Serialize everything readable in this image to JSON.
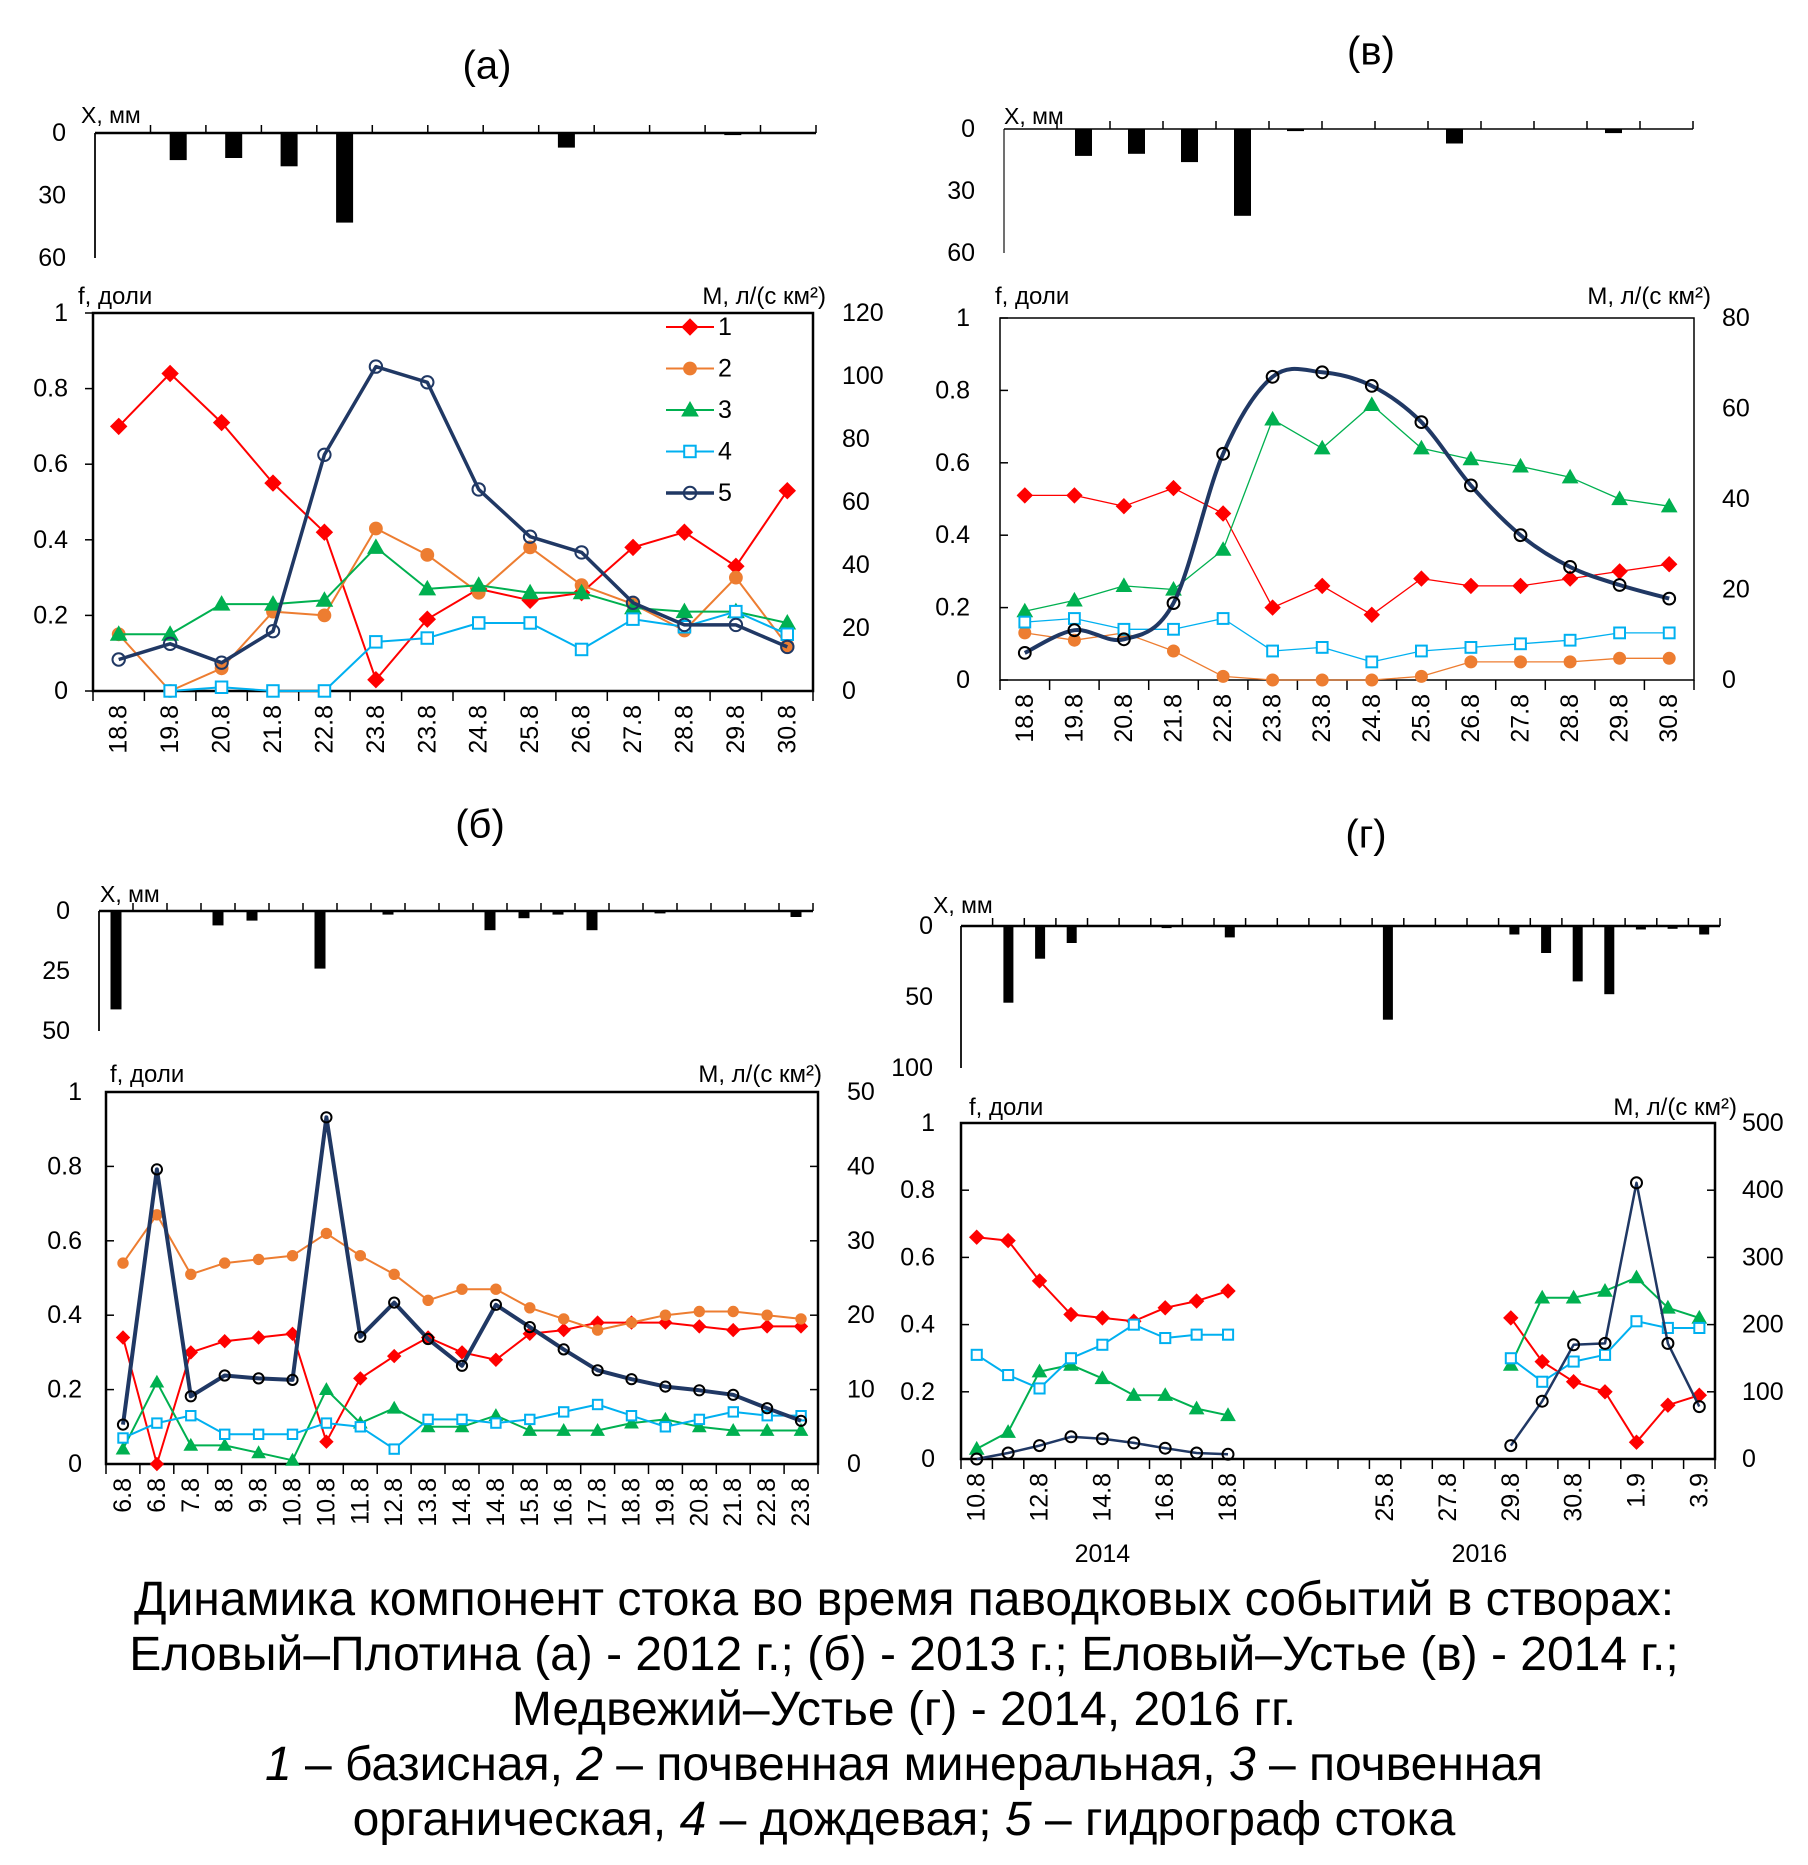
{
  "figure": {
    "panels": [
      {
        "key": "а",
        "title": "(а)"
      },
      {
        "key": "в",
        "title": "(в)"
      },
      {
        "key": "б",
        "title": "(б)"
      },
      {
        "key": "г",
        "title": "(г)"
      }
    ],
    "caption": {
      "lines": [
        "Динамика компонент стока во время паводковых событий в створах:",
        "Еловый–Плотина (а) - 2012 г.; (б) - 2013 г.; Еловый–Устье (в) - 2014 г.;",
        "Медвежий–Устье (г) - 2014, 2016 гг."
      ],
      "legend_lines": [
        [
          {
            "num": "1",
            "text": " – базисная, "
          },
          {
            "num": "2",
            "text": " – почвенная минеральная, "
          },
          {
            "num": "3",
            "text": " – почвенная"
          }
        ],
        [
          {
            "num": "",
            "text": "органическая, "
          },
          {
            "num": "4",
            "text": " – дождевая; "
          },
          {
            "num": "5",
            "text": " – гидрограф стока"
          }
        ]
      ]
    }
  },
  "series_styles": [
    {
      "name": "1",
      "label": "базисная",
      "color": "#FF0000",
      "marker": "diamond",
      "marker_fill": "#FF0000"
    },
    {
      "name": "2",
      "label": "почвенная минеральная",
      "color": "#ED7D31",
      "marker": "circle",
      "marker_fill": "#ED7D31"
    },
    {
      "name": "3",
      "label": "почвенная органическая",
      "color": "#00B050",
      "marker": "triangle",
      "marker_fill": "#00B050"
    },
    {
      "name": "4",
      "label": "дождевая",
      "color": "#00B0F0",
      "marker": "square",
      "marker_fill": "#FFFFFF"
    },
    {
      "name": "5",
      "label": "гидрограф стока",
      "color": "#203864",
      "marker": "circle-open",
      "marker_fill": "none"
    }
  ],
  "chart_data": [
    {
      "panel": "а",
      "role": "precipitation",
      "type": "bar",
      "ylabel": "X, мм",
      "yticks": [
        0,
        30,
        60
      ],
      "ylim": [
        0,
        60
      ],
      "y_direction": "down",
      "values": [
        null,
        13,
        12,
        16,
        43,
        null,
        null,
        null,
        7,
        null,
        null,
        1,
        null
      ]
    },
    {
      "panel": "а",
      "role": "runoff-components",
      "type": "line",
      "grid": false,
      "ylabel_left": "f, доли",
      "ylabel_right": "M, л/(с км²)",
      "yticks_left": [
        0,
        0.2,
        0.4,
        0.6,
        0.8,
        1
      ],
      "ylim_left": [
        0,
        1
      ],
      "yticks_right": [
        0,
        20,
        40,
        60,
        80,
        100,
        120
      ],
      "ylim_right": [
        0,
        120
      ],
      "categories": [
        "18.8",
        "19.8",
        "20.8",
        "21.8",
        "22.8",
        "23.8",
        "23.8",
        "24.8",
        "25.8",
        "26.8",
        "27.8",
        "28.8",
        "29.8",
        "30.8"
      ],
      "series": [
        {
          "name": "1",
          "axis": "left",
          "values": [
            0.7,
            0.84,
            0.71,
            0.55,
            0.42,
            0.03,
            0.19,
            0.27,
            0.24,
            0.26,
            0.38,
            0.42,
            0.33,
            0.53
          ]
        },
        {
          "name": "2",
          "axis": "left",
          "values": [
            0.15,
            0.0,
            0.06,
            0.21,
            0.2,
            0.43,
            0.36,
            0.26,
            0.38,
            0.28,
            0.23,
            0.16,
            0.3,
            0.12
          ]
        },
        {
          "name": "3",
          "axis": "left",
          "values": [
            0.15,
            0.15,
            0.23,
            0.23,
            0.24,
            0.38,
            0.27,
            0.28,
            0.26,
            0.26,
            0.22,
            0.21,
            0.21,
            0.18
          ]
        },
        {
          "name": "4",
          "axis": "left",
          "values": [
            null,
            0.0,
            0.01,
            0.0,
            0.0,
            0.13,
            0.14,
            0.18,
            0.18,
            0.11,
            0.19,
            0.17,
            0.21,
            0.15
          ]
        },
        {
          "name": "5",
          "axis": "right",
          "values": [
            10,
            15,
            9,
            19,
            75,
            103,
            98,
            64,
            49,
            44,
            28,
            21,
            21,
            14
          ]
        }
      ],
      "legend": {
        "entries": [
          "1",
          "2",
          "3",
          "4",
          "5"
        ],
        "placement": "top-right"
      }
    },
    {
      "panel": "в",
      "role": "precipitation",
      "type": "bar",
      "ylabel": "X, мм",
      "yticks": [
        0,
        30,
        60
      ],
      "ylim": [
        0,
        60
      ],
      "y_direction": "down",
      "values": [
        null,
        13,
        12,
        16,
        42,
        1,
        null,
        null,
        7,
        null,
        null,
        2,
        null
      ]
    },
    {
      "panel": "в",
      "role": "runoff-components",
      "type": "line",
      "grid": false,
      "ylabel_left": "f, доли",
      "ylabel_right": "M, л/(с км²)",
      "yticks_left": [
        0,
        0.2,
        0.4,
        0.6,
        0.8,
        1
      ],
      "ylim_left": [
        0,
        1
      ],
      "yticks_right": [
        0,
        20,
        40,
        60,
        80
      ],
      "ylim_right": [
        0,
        80
      ],
      "categories": [
        "18.8",
        "19.8",
        "20.8",
        "21.8",
        "22.8",
        "23.8",
        "23.8",
        "24.8",
        "25.8",
        "26.8",
        "27.8",
        "28.8",
        "29.8",
        "30.8"
      ],
      "series": [
        {
          "name": "1",
          "axis": "left",
          "values": [
            0.51,
            0.51,
            0.48,
            0.53,
            0.46,
            0.2,
            0.26,
            0.18,
            0.28,
            0.26,
            0.26,
            0.28,
            0.3,
            0.32
          ]
        },
        {
          "name": "2",
          "axis": "left",
          "values": [
            0.13,
            0.11,
            0.13,
            0.08,
            0.01,
            0.0,
            0.0,
            0.0,
            0.01,
            0.05,
            0.05,
            0.05,
            0.06,
            0.06
          ]
        },
        {
          "name": "3",
          "axis": "left",
          "values": [
            0.19,
            0.22,
            0.26,
            0.25,
            0.36,
            0.72,
            0.64,
            0.76,
            0.64,
            0.61,
            0.59,
            0.56,
            0.5,
            0.48
          ]
        },
        {
          "name": "4",
          "axis": "left",
          "values": [
            0.16,
            0.17,
            0.14,
            0.14,
            0.17,
            0.08,
            0.09,
            0.05,
            0.08,
            0.09,
            0.1,
            0.11,
            0.13,
            0.13
          ]
        },
        {
          "name": "5",
          "axis": "right",
          "values": [
            6,
            11,
            9,
            17,
            50,
            67,
            68,
            65,
            57,
            43,
            32,
            25,
            21,
            18
          ]
        }
      ]
    },
    {
      "panel": "б",
      "role": "precipitation",
      "type": "bar",
      "ylabel": "X, мм",
      "yticks": [
        0,
        25,
        50
      ],
      "ylim": [
        0,
        50
      ],
      "y_direction": "down",
      "values": [
        41,
        null,
        null,
        6,
        4,
        null,
        24,
        null,
        1.5,
        null,
        null,
        8,
        3,
        1.5,
        8,
        null,
        1,
        null,
        null,
        null,
        2.5
      ]
    },
    {
      "panel": "б",
      "role": "runoff-components",
      "type": "line",
      "grid": false,
      "ylabel_left": "f, доли",
      "ylabel_right": "M, л/(с км²)",
      "yticks_left": [
        0,
        0.2,
        0.4,
        0.6,
        0.8,
        1
      ],
      "ylim_left": [
        0,
        1
      ],
      "yticks_right": [
        0,
        10,
        20,
        30,
        40,
        50
      ],
      "ylim_right": [
        0,
        50
      ],
      "categories": [
        "6.8",
        "6.8",
        "7.8",
        "8.8",
        "9.8",
        "10.8",
        "10.8",
        "11.8",
        "12.8",
        "13.8",
        "14.8",
        "14.8",
        "15.8",
        "16.8",
        "17.8",
        "18.8",
        "19.8",
        "20.8",
        "21.8",
        "22.8",
        "23.8"
      ],
      "series": [
        {
          "name": "1",
          "axis": "left",
          "values": [
            0.34,
            0.0,
            0.3,
            0.33,
            0.34,
            0.35,
            0.06,
            0.23,
            0.29,
            0.34,
            0.3,
            0.28,
            0.35,
            0.36,
            0.38,
            0.38,
            0.38,
            0.37,
            0.36,
            0.37,
            0.37
          ]
        },
        {
          "name": "2",
          "axis": "left",
          "values": [
            0.54,
            0.67,
            0.51,
            0.54,
            0.55,
            0.56,
            0.62,
            0.56,
            0.51,
            0.44,
            0.47,
            0.47,
            0.42,
            0.39,
            0.36,
            0.38,
            0.4,
            0.41,
            0.41,
            0.4,
            0.39
          ]
        },
        {
          "name": "3",
          "axis": "left",
          "values": [
            0.04,
            0.22,
            0.05,
            0.05,
            0.03,
            0.01,
            0.2,
            0.11,
            0.15,
            0.1,
            0.1,
            0.13,
            0.09,
            0.09,
            0.09,
            0.11,
            0.12,
            0.1,
            0.09,
            0.09,
            0.09
          ]
        },
        {
          "name": "4",
          "axis": "left",
          "values": [
            0.07,
            0.11,
            0.13,
            0.08,
            0.08,
            0.08,
            0.11,
            0.1,
            0.04,
            0.12,
            0.12,
            0.11,
            0.12,
            0.14,
            0.16,
            0.13,
            0.1,
            0.12,
            0.14,
            0.13,
            0.13
          ]
        },
        {
          "name": "5",
          "axis": "right",
          "values": [
            5.3,
            39.6,
            9.1,
            11.9,
            11.5,
            11.3,
            46.6,
            17.1,
            21.7,
            16.8,
            13.2,
            21.4,
            18.4,
            15.4,
            12.6,
            11.4,
            10.4,
            9.9,
            9.3,
            7.5,
            5.8
          ]
        }
      ]
    },
    {
      "panel": "г",
      "role": "precipitation",
      "type": "bar",
      "ylabel": "X, мм",
      "yticks": [
        0,
        50,
        100
      ],
      "ylim": [
        0,
        100
      ],
      "y_direction": "down",
      "values": [
        null,
        54,
        23,
        12,
        null,
        null,
        1.5,
        null,
        8,
        null,
        null,
        null,
        null,
        66,
        null,
        null,
        null,
        6,
        19,
        39,
        48,
        2.5,
        2,
        6
      ]
    },
    {
      "panel": "г",
      "role": "runoff-components",
      "type": "line",
      "grid": false,
      "ylabel_left": "f, доли",
      "ylabel_right": "M, л/(с км²)",
      "yticks_left": [
        0,
        0.2,
        0.4,
        0.6,
        0.8,
        1
      ],
      "ylim_left": [
        0,
        1
      ],
      "yticks_right": [
        0,
        100,
        200,
        300,
        400,
        500
      ],
      "ylim_right": [
        0,
        500
      ],
      "categories": [
        "10.8",
        "",
        "12.8",
        "",
        "14.8",
        "",
        "16.8",
        "",
        "18.8",
        "",
        "",
        "",
        "",
        "25.8",
        "",
        "27.8",
        "",
        "29.8",
        "",
        "30.8",
        "",
        "1.9",
        "",
        "3.9"
      ],
      "x_groups": [
        {
          "label": "2014",
          "from": 0,
          "to": 8
        },
        {
          "label": "2016",
          "from": 9,
          "to": 23
        }
      ],
      "series": [
        {
          "name": "1",
          "axis": "left",
          "values": [
            0.66,
            0.65,
            0.53,
            0.43,
            0.42,
            0.41,
            0.45,
            0.47,
            0.5,
            null,
            null,
            null,
            null,
            null,
            null,
            null,
            null,
            0.42,
            0.29,
            0.23,
            0.2,
            0.05,
            0.16,
            0.19
          ]
        },
        {
          "name": "3",
          "axis": "left",
          "values": [
            0.03,
            0.08,
            0.26,
            0.28,
            0.24,
            0.19,
            0.19,
            0.15,
            0.13,
            null,
            null,
            null,
            null,
            null,
            null,
            null,
            null,
            0.28,
            0.48,
            0.48,
            0.5,
            0.54,
            0.45,
            0.42
          ]
        },
        {
          "name": "4",
          "axis": "left",
          "values": [
            0.31,
            0.25,
            0.21,
            0.3,
            0.34,
            0.4,
            0.36,
            0.37,
            0.37,
            null,
            null,
            null,
            null,
            null,
            null,
            null,
            null,
            0.3,
            0.23,
            0.29,
            0.31,
            0.41,
            0.39,
            0.39
          ]
        },
        {
          "name": "5",
          "axis": "right",
          "values": [
            0,
            9,
            20,
            33,
            30,
            24,
            16,
            9,
            7,
            null,
            null,
            null,
            null,
            null,
            null,
            null,
            null,
            20,
            86,
            170,
            172,
            411,
            172,
            78
          ]
        }
      ]
    }
  ]
}
